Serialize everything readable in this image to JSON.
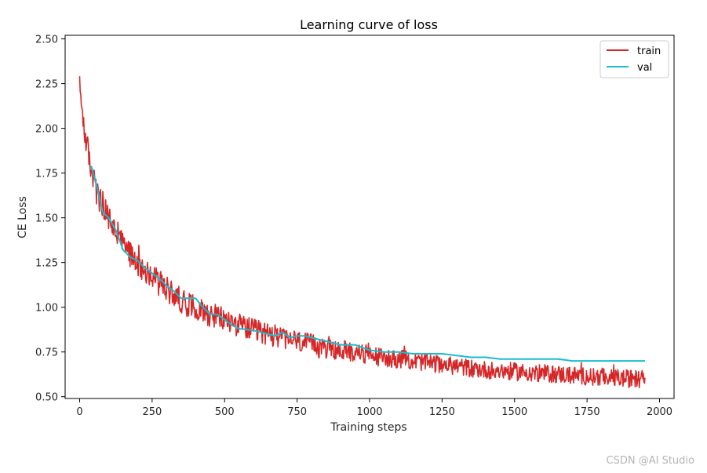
{
  "chart_data": {
    "type": "line",
    "title": "Learning curve of loss",
    "xlabel": "Training steps",
    "ylabel": "CE Loss",
    "xlim": [
      -50,
      2050
    ],
    "ylim": [
      0.49,
      2.52
    ],
    "xticks": [
      0,
      250,
      500,
      750,
      1000,
      1250,
      1500,
      1750,
      2000
    ],
    "yticks": [
      0.5,
      0.75,
      1.0,
      1.25,
      1.5,
      1.75,
      2.0,
      2.25,
      2.5
    ],
    "xtick_labels": [
      "0",
      "250",
      "500",
      "750",
      "1000",
      "1250",
      "1500",
      "1750",
      "2000"
    ],
    "ytick_labels": [
      "0.50",
      "0.75",
      "1.00",
      "1.25",
      "1.50",
      "1.75",
      "2.00",
      "2.25",
      "2.50"
    ],
    "grid": false,
    "legend_position": "top-right",
    "series": [
      {
        "name": "train",
        "color": "#d62728",
        "noisy": true,
        "x": [
          0,
          10,
          20,
          30,
          40,
          50,
          60,
          80,
          100,
          125,
          150,
          175,
          200,
          250,
          300,
          350,
          400,
          450,
          500,
          550,
          600,
          650,
          700,
          750,
          800,
          850,
          900,
          950,
          1000,
          1050,
          1100,
          1150,
          1200,
          1250,
          1300,
          1350,
          1400,
          1450,
          1500,
          1550,
          1600,
          1650,
          1700,
          1750,
          1800,
          1850,
          1900,
          1950
        ],
        "values": [
          2.22,
          2.1,
          1.95,
          1.86,
          1.78,
          1.7,
          1.63,
          1.55,
          1.5,
          1.42,
          1.35,
          1.3,
          1.25,
          1.17,
          1.1,
          1.04,
          1.0,
          0.96,
          0.93,
          0.9,
          0.87,
          0.85,
          0.83,
          0.81,
          0.79,
          0.77,
          0.76,
          0.75,
          0.73,
          0.72,
          0.71,
          0.7,
          0.69,
          0.68,
          0.67,
          0.66,
          0.65,
          0.645,
          0.64,
          0.635,
          0.63,
          0.625,
          0.62,
          0.615,
          0.61,
          0.605,
          0.6,
          0.6
        ]
      },
      {
        "name": "val",
        "color": "#17becf",
        "noisy": false,
        "x": [
          40,
          50,
          60,
          70,
          80,
          100,
          125,
          150,
          175,
          200,
          225,
          250,
          275,
          300,
          325,
          350,
          375,
          400,
          425,
          450,
          475,
          500,
          525,
          550,
          600,
          650,
          675,
          700,
          725,
          750,
          775,
          800,
          850,
          900,
          950,
          1000,
          1050,
          1100,
          1150,
          1200,
          1250,
          1300,
          1350,
          1400,
          1450,
          1500,
          1550,
          1600,
          1650,
          1700,
          1750,
          1800,
          1850,
          1900,
          1950
        ],
        "values": [
          1.79,
          1.73,
          1.67,
          1.6,
          1.53,
          1.5,
          1.43,
          1.32,
          1.28,
          1.26,
          1.22,
          1.19,
          1.16,
          1.12,
          1.09,
          1.05,
          1.05,
          1.05,
          1.0,
          0.96,
          0.96,
          0.93,
          0.9,
          0.88,
          0.87,
          0.85,
          0.84,
          0.86,
          0.83,
          0.84,
          0.84,
          0.83,
          0.81,
          0.79,
          0.79,
          0.76,
          0.75,
          0.75,
          0.74,
          0.74,
          0.74,
          0.73,
          0.72,
          0.72,
          0.71,
          0.71,
          0.71,
          0.71,
          0.71,
          0.7,
          0.7,
          0.7,
          0.7,
          0.7,
          0.7
        ]
      }
    ]
  },
  "watermark": "CSDN @AI Studio"
}
